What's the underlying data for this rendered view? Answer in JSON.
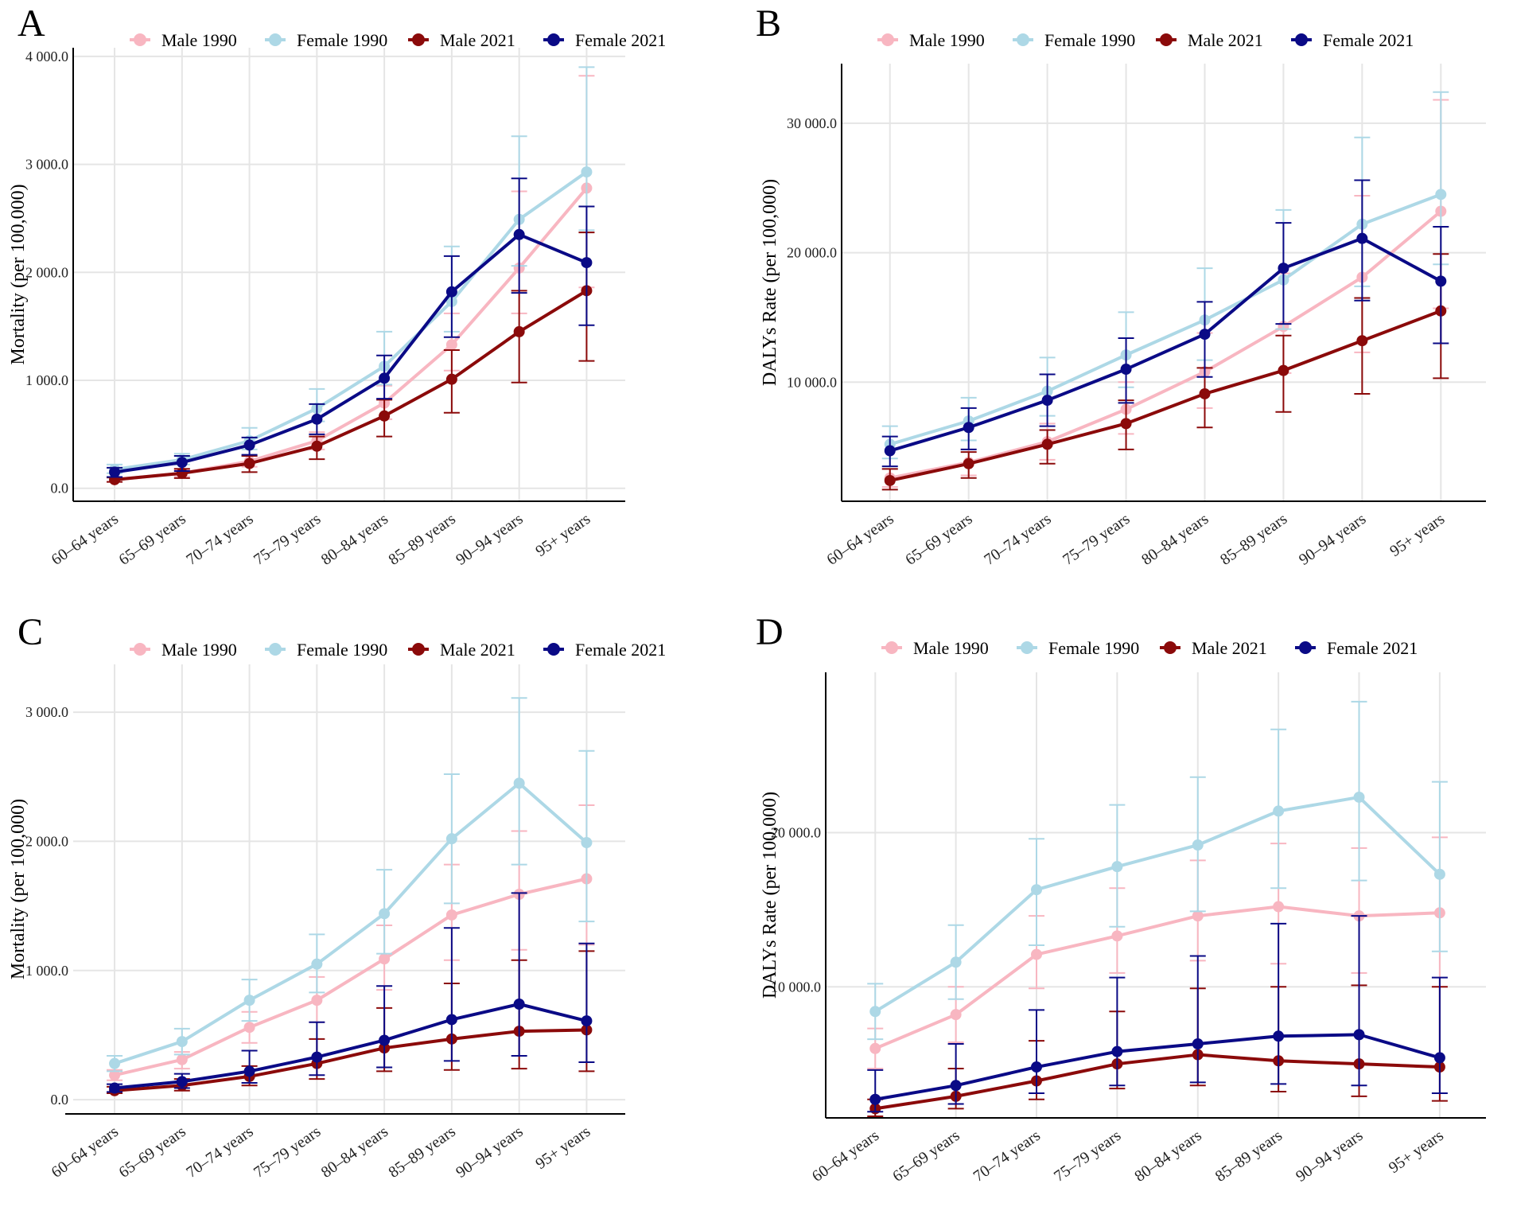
{
  "colors": {
    "male_1990": "#f8b6c1",
    "female_1990": "#add8e6",
    "male_2021": "#8b0a0a",
    "female_2021": "#0a0a86",
    "grid": "#e5e5e5",
    "axis": "#000000",
    "text": "#222222"
  },
  "chart_data": [
    {
      "panel": "A",
      "type": "line",
      "ylabel": "Mortality (per 100,000)",
      "xlabel": "",
      "ylim": [
        -120,
        4080
      ],
      "yticks": [
        0,
        1000,
        2000,
        3000,
        4000
      ],
      "ytick_labels": [
        "0.0",
        "1 000.0",
        "2 000.0",
        "3 000.0",
        "4 000.0"
      ],
      "categories": [
        "60–64 years",
        "65–69 years",
        "70–74 years",
        "75–79 years",
        "80–84 years",
        "85–89 years",
        "90–94 years",
        "95+ years"
      ],
      "legend": [
        "Male 1990",
        "Female 1990",
        "Male 2021",
        "Female 2021"
      ],
      "legend_position": "top",
      "axis_frame": "left-bottom",
      "series": [
        {
          "name": "Male 1990",
          "values": [
            80,
            140,
            250,
            440,
            790,
            1330,
            2040,
            2780
          ],
          "lower": [
            60,
            110,
            200,
            360,
            640,
            1090,
            1620,
            1860
          ],
          "upper": [
            100,
            175,
            300,
            520,
            950,
            1620,
            2750,
            3820
          ]
        },
        {
          "name": "Female 1990",
          "values": [
            175,
            265,
            440,
            740,
            1130,
            1730,
            2490,
            2930
          ],
          "lower": [
            140,
            220,
            360,
            620,
            960,
            1450,
            2060,
            2390
          ],
          "upper": [
            220,
            320,
            560,
            920,
            1450,
            2240,
            3260,
            3900
          ]
        },
        {
          "name": "Male 2021",
          "values": [
            80,
            140,
            230,
            390,
            670,
            1010,
            1450,
            1830
          ],
          "lower": [
            60,
            95,
            150,
            270,
            480,
            700,
            980,
            1180
          ],
          "upper": [
            100,
            180,
            300,
            480,
            820,
            1280,
            1830,
            2370
          ]
        },
        {
          "name": "Female 2021",
          "values": [
            150,
            240,
            400,
            640,
            1020,
            1820,
            2350,
            2090
          ],
          "lower": [
            105,
            160,
            310,
            500,
            830,
            1400,
            1810,
            1510
          ],
          "upper": [
            190,
            300,
            470,
            780,
            1230,
            2150,
            2870,
            2610
          ]
        }
      ]
    },
    {
      "panel": "B",
      "type": "line",
      "ylabel": "DALYs Rate (per 100,000)",
      "xlabel": "",
      "ylim": [
        800,
        34600
      ],
      "yticks": [
        10000,
        20000,
        30000
      ],
      "ytick_labels": [
        "10 000.0",
        "20 000.0",
        "30 000.0"
      ],
      "categories": [
        "60–64 years",
        "65–69 years",
        "70–74 years",
        "75–79 years",
        "80–84 years",
        "85–89 years",
        "90–94 years",
        "95+ years"
      ],
      "legend": [
        "Male 1990",
        "Female 1990",
        "Male 2021",
        "Female 2021"
      ],
      "legend_position": "top",
      "axis_frame": "left-bottom",
      "series": [
        {
          "name": "Male 1990",
          "values": [
            2600,
            3800,
            5400,
            7900,
            10800,
            14300,
            18100,
            23200
          ],
          "lower": [
            1900,
            2800,
            4000,
            6000,
            8000,
            10700,
            12300,
            15700
          ],
          "upper": [
            3300,
            4800,
            6800,
            10000,
            13800,
            18400,
            24400,
            31800
          ]
        },
        {
          "name": "Female 1990",
          "values": [
            5200,
            7000,
            9300,
            12100,
            14800,
            17900,
            22200,
            24500
          ],
          "lower": [
            4100,
            5500,
            7400,
            9600,
            11700,
            14100,
            17400,
            19100
          ],
          "upper": [
            6600,
            8800,
            11900,
            15400,
            18800,
            23300,
            28900,
            32400
          ]
        },
        {
          "name": "Male 2021",
          "values": [
            2400,
            3700,
            5200,
            6800,
            9100,
            10900,
            13200,
            15500
          ],
          "lower": [
            1700,
            2600,
            3700,
            4800,
            6500,
            7700,
            9100,
            10300
          ],
          "upper": [
            3300,
            4600,
            6300,
            8600,
            11100,
            13600,
            16500,
            19900
          ]
        },
        {
          "name": "Female 2021",
          "values": [
            4700,
            6500,
            8600,
            11000,
            13700,
            18800,
            21100,
            17800
          ],
          "lower": [
            3500,
            4800,
            6600,
            8400,
            10400,
            14500,
            16300,
            13000
          ],
          "upper": [
            5800,
            8000,
            10600,
            13400,
            16200,
            22300,
            25600,
            22000
          ]
        }
      ]
    },
    {
      "panel": "C",
      "type": "line",
      "ylabel": "Mortality (per 100,000)",
      "xlabel": "",
      "ylim": [
        -110,
        3370
      ],
      "yticks": [
        0,
        1000,
        2000,
        3000
      ],
      "ytick_labels": [
        "0.0",
        "1 000.0",
        "2 000.0",
        "3 000.0"
      ],
      "categories": [
        "60–64 years",
        "65–69 years",
        "70–74 years",
        "75–79 years",
        "80–84 years",
        "85–89 years",
        "90–94 years",
        "95+ years"
      ],
      "legend": [
        "Male 1990",
        "Female 1990",
        "Male 2021",
        "Female 2021"
      ],
      "legend_position": "top",
      "axis_frame": "bottom",
      "series": [
        {
          "name": "Male 1990",
          "values": [
            190,
            310,
            560,
            770,
            1090,
            1430,
            1590,
            1710
          ],
          "lower": [
            150,
            240,
            440,
            600,
            850,
            1080,
            1160,
            1200
          ],
          "upper": [
            230,
            370,
            680,
            950,
            1350,
            1820,
            2080,
            2280
          ]
        },
        {
          "name": "Female 1990",
          "values": [
            280,
            450,
            770,
            1050,
            1440,
            2020,
            2450,
            1990
          ],
          "lower": [
            220,
            350,
            610,
            830,
            1130,
            1520,
            1820,
            1380
          ],
          "upper": [
            340,
            550,
            930,
            1280,
            1780,
            2520,
            3110,
            2700
          ]
        },
        {
          "name": "Male 2021",
          "values": [
            70,
            110,
            180,
            280,
            400,
            470,
            530,
            540
          ],
          "lower": [
            50,
            70,
            110,
            160,
            220,
            230,
            240,
            220
          ],
          "upper": [
            100,
            160,
            260,
            470,
            710,
            900,
            1080,
            1150
          ]
        },
        {
          "name": "Female 2021",
          "values": [
            90,
            140,
            220,
            330,
            460,
            620,
            740,
            610
          ],
          "lower": [
            60,
            90,
            130,
            190,
            250,
            300,
            340,
            290
          ],
          "upper": [
            120,
            200,
            380,
            600,
            880,
            1330,
            1600,
            1210
          ]
        }
      ]
    },
    {
      "panel": "D",
      "type": "line",
      "ylabel": "DALYs Rate (per 100,000)",
      "xlabel": "",
      "ylim": [
        1500,
        30400
      ],
      "yticks": [
        10000,
        20000
      ],
      "ytick_labels": [
        "10 000.0",
        "20 000.0"
      ],
      "categories": [
        "60–64 years",
        "65–69 years",
        "70–74 years",
        "75–79 years",
        "80–84 years",
        "85–89 years",
        "90–94 years",
        "95+ years"
      ],
      "legend": [
        "Male 1990",
        "Female 1990",
        "Male 2021",
        "Female 2021"
      ],
      "legend_position": "top",
      "axis_frame": "left-bottom",
      "series": [
        {
          "name": "Male 1990",
          "values": [
            6000,
            8200,
            12100,
            13300,
            14600,
            15200,
            14600,
            14800
          ],
          "lower": [
            4700,
            6400,
            9900,
            10900,
            11700,
            11500,
            10900,
            10000
          ],
          "upper": [
            7300,
            10000,
            14600,
            16400,
            18200,
            19300,
            19000,
            19700
          ]
        },
        {
          "name": "Female 1990",
          "values": [
            8400,
            11600,
            16300,
            17800,
            19200,
            21400,
            22300,
            17300
          ],
          "lower": [
            6600,
            9200,
            12700,
            13900,
            14900,
            16400,
            16900,
            12300
          ],
          "upper": [
            10200,
            14000,
            19600,
            21800,
            23600,
            26700,
            28500,
            23300
          ]
        },
        {
          "name": "Male 2021",
          "values": [
            2100,
            2900,
            3900,
            5000,
            5600,
            5200,
            5000,
            4800
          ],
          "lower": [
            1600,
            2100,
            2700,
            3400,
            3600,
            3200,
            2900,
            2600
          ],
          "upper": [
            2700,
            4700,
            6500,
            8400,
            9900,
            10000,
            10100,
            10000
          ]
        },
        {
          "name": "Female 2021",
          "values": [
            2700,
            3600,
            4800,
            5800,
            6300,
            6800,
            6900,
            5400
          ],
          "lower": [
            1900,
            2400,
            3100,
            3600,
            3800,
            3700,
            3600,
            3100
          ],
          "upper": [
            4600,
            6300,
            8500,
            10600,
            12000,
            14100,
            14600,
            10600
          ]
        }
      ]
    }
  ],
  "panel_labels": [
    "A",
    "B",
    "C",
    "D"
  ]
}
